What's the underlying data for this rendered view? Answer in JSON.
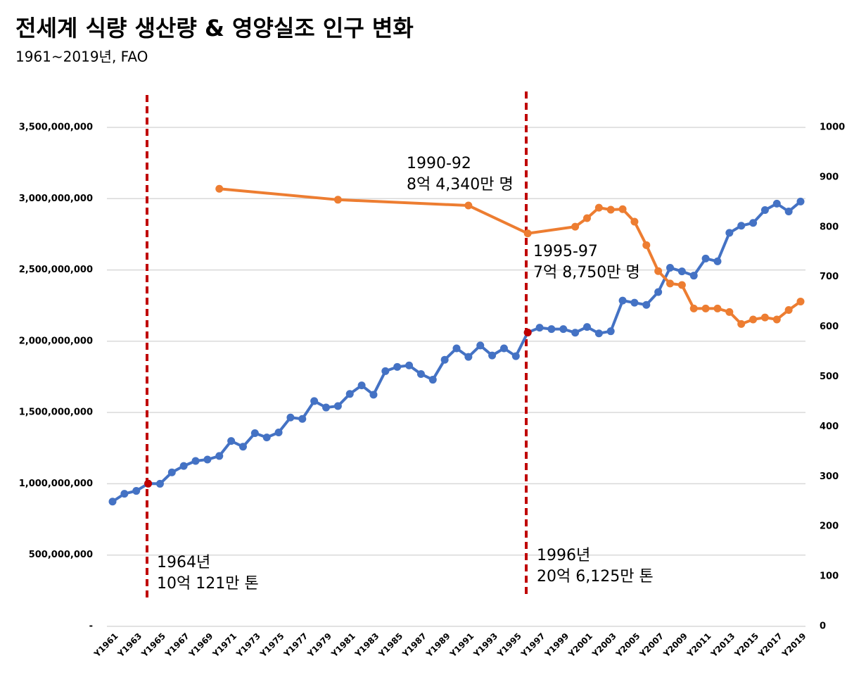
{
  "chart_data": {
    "type": "line",
    "title": "전세계 식량 생산량 & 영양실조 인구 변화",
    "subtitle": "1961~2019년, FAO",
    "categories": [
      "Y1961",
      null,
      "Y1963",
      null,
      "Y1965",
      null,
      "Y1967",
      null,
      "Y1969",
      null,
      "Y1971",
      null,
      "Y1973",
      null,
      "Y1975",
      null,
      "Y1977",
      null,
      "Y1979",
      null,
      "Y1981",
      null,
      "Y1983",
      null,
      "Y1985",
      null,
      "Y1987",
      null,
      "Y1989",
      null,
      "Y1991",
      null,
      "Y1993",
      null,
      "Y1995",
      null,
      "Y1997",
      null,
      "Y1999",
      null,
      "Y2001",
      null,
      "Y2003",
      null,
      "Y2005",
      null,
      "Y2007",
      null,
      "Y2009",
      null,
      "Y2011",
      null,
      "Y2013",
      null,
      "Y2015",
      null,
      "Y2017",
      null,
      "Y2019"
    ],
    "series": [
      {
        "color": "#4472c4",
        "axis": "y",
        "values": [
          875000000,
          930000000,
          950000000,
          1001210000,
          1000000000,
          1080000000,
          1125000000,
          1160000000,
          1170000000,
          1195000000,
          1300000000,
          1260000000,
          1355000000,
          1325000000,
          1360000000,
          1465000000,
          1455000000,
          1580000000,
          1535000000,
          1545000000,
          1630000000,
          1690000000,
          1625000000,
          1790000000,
          1820000000,
          1830000000,
          1770000000,
          1730000000,
          1870000000,
          1950000000,
          1890000000,
          1970000000,
          1900000000,
          1950000000,
          1895000000,
          2061250000,
          2095000000,
          2085000000,
          2085000000,
          2060000000,
          2100000000,
          2055000000,
          2070000000,
          2285000000,
          2270000000,
          2255000000,
          2345000000,
          2515000000,
          2490000000,
          2460000000,
          2580000000,
          2560000000,
          2760000000,
          2810000000,
          2830000000,
          2920000000,
          2965000000,
          2910000000,
          2980000000
        ]
      },
      {
        "color": "#ed7d31",
        "axis": "y2",
        "values": [
          null,
          null,
          null,
          null,
          null,
          null,
          null,
          null,
          null,
          877,
          null,
          null,
          null,
          null,
          null,
          null,
          null,
          null,
          null,
          855,
          null,
          null,
          null,
          null,
          null,
          null,
          null,
          null,
          null,
          null,
          843.4,
          null,
          null,
          null,
          null,
          787.5,
          null,
          null,
          null,
          801,
          818,
          839,
          835,
          836,
          811,
          764,
          712,
          687,
          684,
          637,
          637,
          637,
          630,
          606,
          615,
          619,
          615,
          634,
          651
        ]
      }
    ],
    "ylim": [
      0,
      3500000000
    ],
    "yticks": [
      {
        "value": 0,
        "label": "-"
      },
      {
        "value": 500000000,
        "label": "500,000,000"
      },
      {
        "value": 1000000000,
        "label": "1,000,000,000"
      },
      {
        "value": 1500000000,
        "label": "1,500,000,000"
      },
      {
        "value": 2000000000,
        "label": "2,000,000,000"
      },
      {
        "value": 2500000000,
        "label": "2,500,000,000"
      },
      {
        "value": 3000000000,
        "label": "3,000,000,000"
      },
      {
        "value": 3500000000,
        "label": "3,500,000,000"
      }
    ],
    "y2lim": [
      0,
      1000
    ],
    "y2ticks": [
      0,
      100,
      200,
      300,
      400,
      500,
      600,
      700,
      800,
      900,
      1000
    ],
    "grid": true,
    "highlight_color": "#c00000",
    "annotations": [
      {
        "lines": [
          "1964년",
          "10억 121만 톤"
        ]
      },
      {
        "lines": [
          "1996년",
          "20억 6,125만 톤"
        ]
      },
      {
        "lines": [
          "1990-92",
          "8억 4,340만 명"
        ]
      },
      {
        "lines": [
          "1995-97",
          "7억 8,750만 명"
        ]
      }
    ]
  }
}
